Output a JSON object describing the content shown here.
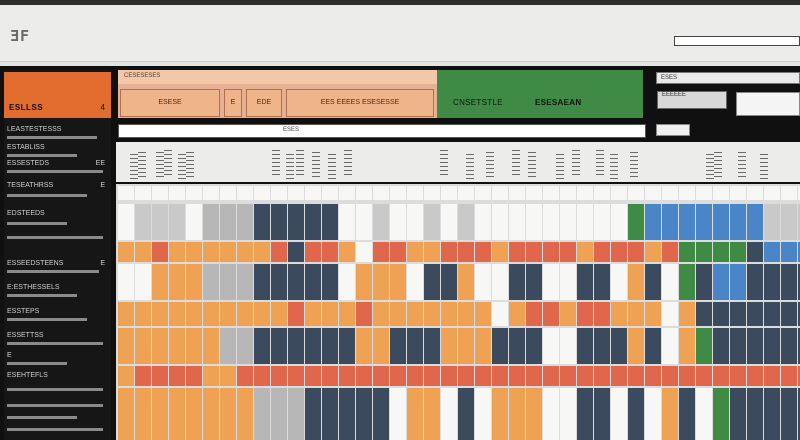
{
  "app": {
    "logo_text": "ƎF"
  },
  "search": {
    "placeholder": ""
  },
  "sidebar": {
    "header_title": "ESLLSS",
    "header_count": "4",
    "items": [
      {
        "label": "LEASTESTESSS",
        "count": ""
      },
      {
        "label": "ESTABLISS",
        "count": ""
      },
      {
        "label": "ESSESTEDS",
        "count": "EE"
      },
      {
        "label": "TESEATHRSS",
        "count": "E"
      },
      {
        "label": "EDSTEEDS",
        "count": ""
      },
      {
        "label": "ESSEEDSTEENS",
        "count": "E"
      },
      {
        "label": "E:ESTHESSELS",
        "count": ""
      },
      {
        "label": "ESSTEPS",
        "count": ""
      },
      {
        "label": "ESSETTSS",
        "count": ""
      },
      {
        "label": "E",
        "count": ""
      },
      {
        "label": "ESEHTEFLS",
        "count": ""
      }
    ]
  },
  "toolbar": {
    "strip_label": "CESESESES",
    "btn1": "ESESE",
    "btn2": "E",
    "btn3": "EDE",
    "btn4": "EES EEEES ESESESSE",
    "green_left": "CNSETSTLE",
    "green_right": "ESESAEAN"
  },
  "right_panel": {
    "input": "ESES",
    "btn1": "EEEEEE"
  },
  "filter_bar": {
    "label": "ESES"
  },
  "colors": {
    "orange": "#f0a254",
    "red": "#e0674c",
    "navy": "#3c4a5e",
    "blue": "#4a85c8",
    "green": "#3f8a45",
    "white": "#f7f7f5",
    "gray": "#c9c9c9"
  }
}
